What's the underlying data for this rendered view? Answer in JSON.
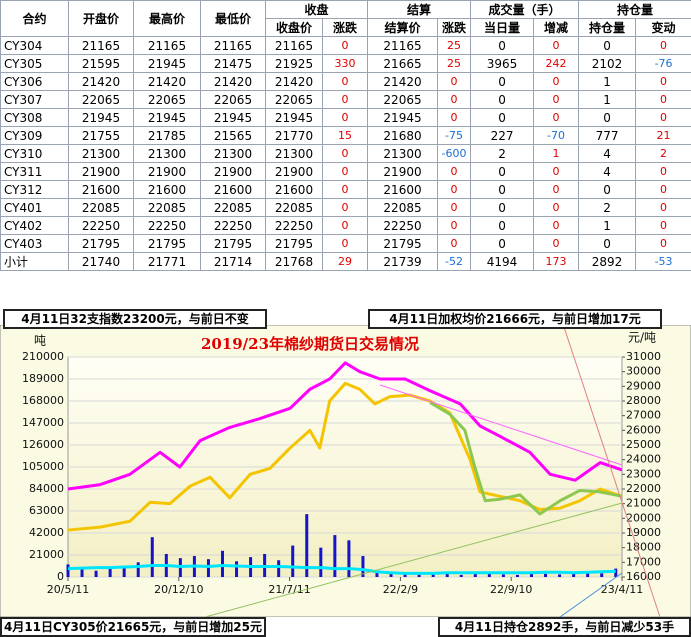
{
  "table": {
    "header_top": [
      "合约",
      "开盘价",
      "最高价",
      "最低价",
      "收盘",
      "结算",
      "成交量（手）",
      "持仓量"
    ],
    "header_sub": [
      "收盘价",
      "涨跌",
      "结算价",
      "涨跌",
      "当日量",
      "增减",
      "持仓量",
      "变动"
    ],
    "rows": [
      [
        "CY304",
        21165,
        21165,
        21165,
        21165,
        0,
        21165,
        25,
        0,
        0,
        0,
        0
      ],
      [
        "CY305",
        21595,
        21945,
        21475,
        21925,
        330,
        21665,
        25,
        3965,
        242,
        2102,
        -76
      ],
      [
        "CY306",
        21420,
        21420,
        21420,
        21420,
        0,
        21420,
        0,
        0,
        0,
        1,
        0
      ],
      [
        "CY307",
        22065,
        22065,
        22065,
        22065,
        0,
        22065,
        0,
        0,
        0,
        1,
        0
      ],
      [
        "CY308",
        21945,
        21945,
        21945,
        21945,
        0,
        21945,
        0,
        0,
        0,
        0,
        0
      ],
      [
        "CY309",
        21755,
        21785,
        21565,
        21770,
        15,
        21680,
        -75,
        227,
        -70,
        777,
        21
      ],
      [
        "CY310",
        21300,
        21300,
        21300,
        21300,
        0,
        21300,
        -600,
        2,
        1,
        4,
        2
      ],
      [
        "CY311",
        21900,
        21900,
        21900,
        21900,
        0,
        21900,
        0,
        0,
        0,
        4,
        0
      ],
      [
        "CY312",
        21600,
        21600,
        21600,
        21600,
        0,
        21600,
        0,
        0,
        0,
        0,
        0
      ],
      [
        "CY401",
        22085,
        22085,
        22085,
        22085,
        0,
        22085,
        0,
        0,
        0,
        2,
        0
      ],
      [
        "CY402",
        22250,
        22250,
        22250,
        22250,
        0,
        22250,
        0,
        0,
        0,
        1,
        0
      ],
      [
        "CY403",
        21795,
        21795,
        21795,
        21795,
        0,
        21795,
        0,
        0,
        0,
        0,
        0
      ],
      [
        "小计",
        21740,
        21771,
        21714,
        21768,
        29,
        21739,
        -52,
        4194,
        173,
        2892,
        -53
      ]
    ]
  },
  "notes": [
    "4月11日32支指数23200元，与前日不变",
    "4月11日加权均价21666元，与前日增加17元",
    "4月11日CY305价21665元，与前日增加25元",
    "4月11日持仓2892手，与前日减少53手"
  ],
  "chart_data": {
    "type": "combo",
    "title": "2019/23年棉纱期货日交易情况",
    "y_label": "吨",
    "y2_label": "元/吨",
    "xlim": [
      0,
      1065
    ],
    "xticks": [
      {
        "value": 0,
        "label": "20/5/11"
      },
      {
        "value": 213,
        "label": "20/12/10"
      },
      {
        "value": 426,
        "label": "21/7/11"
      },
      {
        "value": 639,
        "label": "22/2/9"
      },
      {
        "value": 852,
        "label": "22/9/10"
      },
      {
        "value": 1065,
        "label": "23/4/11"
      }
    ],
    "ylim": [
      0,
      210000
    ],
    "yticks": [
      0,
      21000,
      42000,
      63000,
      84000,
      105000,
      126000,
      147000,
      168000,
      189000,
      210000
    ],
    "y2lim": [
      16000,
      31000
    ],
    "y2ticks": [
      16000,
      17000,
      18000,
      19000,
      20000,
      21000,
      22000,
      23000,
      24000,
      25000,
      26000,
      27000,
      28000,
      29000,
      30000,
      31000
    ],
    "grid": true,
    "series": [
      {
        "type": "bar",
        "color": "#1414c8",
        "x": [
          0,
          27,
          54,
          81,
          108,
          135,
          162,
          189,
          216,
          243,
          270,
          297,
          324,
          351,
          378,
          405,
          432,
          459,
          486,
          513,
          540,
          567,
          594,
          621,
          648,
          675,
          702,
          729,
          756,
          783,
          810,
          837,
          864,
          891,
          918,
          945,
          972,
          999,
          1026,
          1053
        ],
        "values": [
          12000,
          8000,
          6000,
          10000,
          9000,
          14000,
          38000,
          22000,
          18000,
          20000,
          17000,
          25000,
          15000,
          19000,
          22000,
          16000,
          30000,
          60000,
          28000,
          40000,
          35000,
          20000,
          5000,
          3000,
          2500,
          2000,
          2500,
          3000,
          2000,
          4000,
          3000,
          2500,
          2000,
          3000,
          3000,
          2500,
          3000,
          4000,
          3500,
          8000
        ]
      },
      {
        "type": "line",
        "color": "#00e5ff",
        "x": [
          0,
          27,
          54,
          81,
          108,
          135,
          162,
          189,
          216,
          243,
          270,
          297,
          324,
          351,
          378,
          405,
          432,
          459,
          486,
          513,
          540,
          567,
          594,
          621,
          648,
          675,
          702,
          729,
          756,
          783,
          810,
          837,
          864,
          891,
          918,
          945,
          972,
          999,
          1026,
          1053
        ],
        "values": [
          8000,
          8500,
          9000,
          9000,
          9500,
          10000,
          11000,
          11000,
          10000,
          10500,
          10000,
          11000,
          10500,
          10000,
          10000,
          10000,
          9500,
          9000,
          9000,
          8000,
          8000,
          7000,
          5000,
          4000,
          3500,
          3500,
          3500,
          4000,
          4000,
          4000,
          4000,
          4000,
          4000,
          4000,
          4500,
          4500,
          4000,
          4500,
          5000,
          5500
        ]
      },
      {
        "type": "line",
        "color": "#ff00ff",
        "axis": "y2",
        "x": [
          0,
          62,
          119,
          177,
          215,
          254,
          311,
          369,
          427,
          465,
          503,
          533,
          561,
          600,
          648,
          696,
          754,
          792,
          830,
          888,
          927,
          975,
          1023,
          1065
        ],
        "values": [
          22000,
          22300,
          23000,
          24500,
          23500,
          25300,
          26200,
          26800,
          27500,
          28800,
          29500,
          30600,
          30000,
          29500,
          29500,
          28700,
          27800,
          26300,
          25600,
          24500,
          23000,
          22600,
          23800,
          23300
        ]
      },
      {
        "type": "line",
        "color": "#f5c400",
        "axis": "y2",
        "x": [
          0,
          62,
          119,
          158,
          196,
          235,
          273,
          311,
          350,
          388,
          427,
          465,
          484,
          503,
          533,
          561,
          590,
          619,
          658,
          696,
          734,
          773,
          792,
          830,
          869,
          907,
          946,
          984,
          1023,
          1065
        ],
        "values": [
          19200,
          19400,
          19800,
          21100,
          21000,
          22200,
          22800,
          21400,
          23000,
          23400,
          24800,
          26000,
          24800,
          28000,
          29200,
          28800,
          27800,
          28300,
          28400,
          28000,
          27200,
          24000,
          21800,
          21500,
          21200,
          20600,
          20700,
          21200,
          22000,
          21500
        ]
      },
      {
        "type": "line",
        "color": "#8cc850",
        "axis": "y2",
        "x": [
          696,
          734,
          763,
          782,
          802,
          830,
          869,
          907,
          946,
          984,
          1023,
          1065
        ],
        "values": [
          27900,
          27100,
          26000,
          23500,
          21200,
          21300,
          21600,
          20300,
          21200,
          21900,
          21800,
          21500
        ]
      }
    ]
  }
}
